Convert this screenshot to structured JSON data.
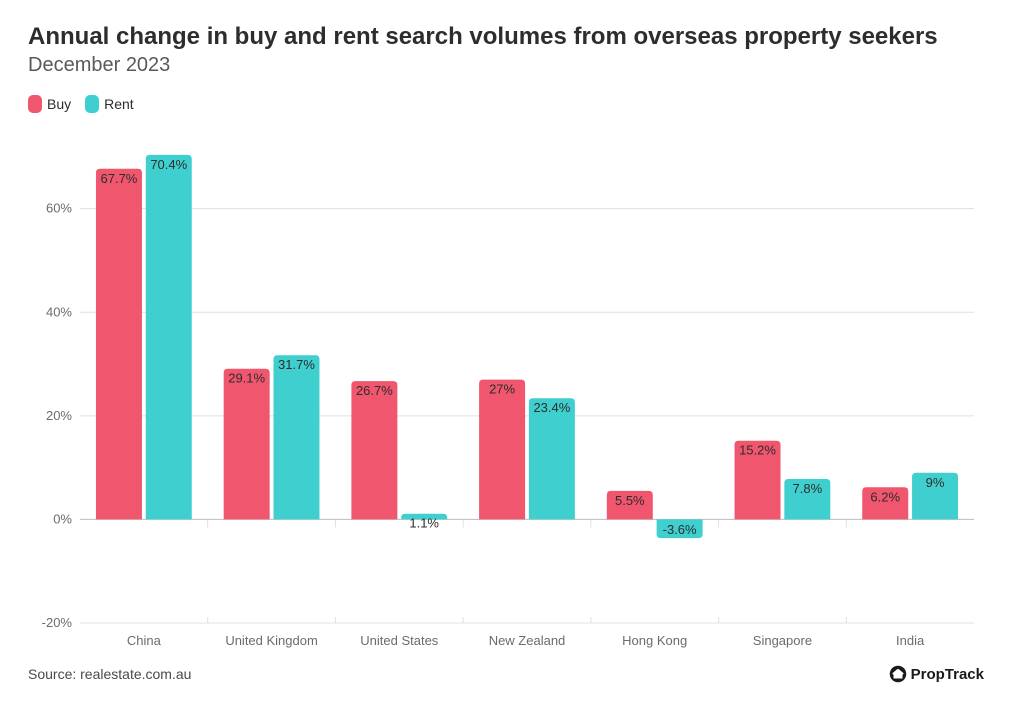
{
  "header": {
    "title": "Annual change in buy and rent search volumes from overseas property seekers",
    "subtitle": "December 2023"
  },
  "legend": {
    "items": [
      {
        "label": "Buy",
        "color": "#f0566e"
      },
      {
        "label": "Rent",
        "color": "#3fcfcf"
      }
    ]
  },
  "chart": {
    "type": "bar",
    "categories": [
      "China",
      "United Kingdom",
      "United States",
      "New Zealand",
      "Hong Kong",
      "Singapore",
      "India"
    ],
    "series": [
      {
        "name": "Buy",
        "color": "#f0566e",
        "values": [
          67.7,
          29.1,
          26.7,
          27.0,
          5.5,
          15.2,
          6.2
        ],
        "labels": [
          "67.7%",
          "29.1%",
          "26.7%",
          "27%",
          "5.5%",
          "15.2%",
          "6.2%"
        ]
      },
      {
        "name": "Rent",
        "color": "#3fcfcf",
        "values": [
          70.4,
          31.7,
          1.1,
          23.4,
          -3.6,
          7.8,
          9.0
        ],
        "labels": [
          "70.4%",
          "31.7%",
          "1.1%",
          "23.4%",
          "-3.6%",
          "7.8%",
          "9%"
        ]
      }
    ],
    "ylim": [
      -20,
      75
    ],
    "yticks": [
      -20,
      0,
      20,
      40,
      60
    ],
    "ytick_labels": [
      "-20%",
      "0%",
      "20%",
      "40%",
      "60%"
    ],
    "grid_color": "#e0e0e0",
    "baseline_color": "#bdbdbd",
    "background_color": "#ffffff",
    "bar_corner_radius": 4,
    "bar_width_ratio": 0.36,
    "group_gap_ratio": 0.03,
    "label_fontsize": 13,
    "axis_fontsize": 13,
    "title_fontsize": 24,
    "subtitle_fontsize": 20,
    "axis_font_color": "#6b6b6b",
    "label_font_color": "#2d2d2d"
  },
  "footer": {
    "source": "Source: realestate.com.au",
    "brand": "PropTrack"
  }
}
